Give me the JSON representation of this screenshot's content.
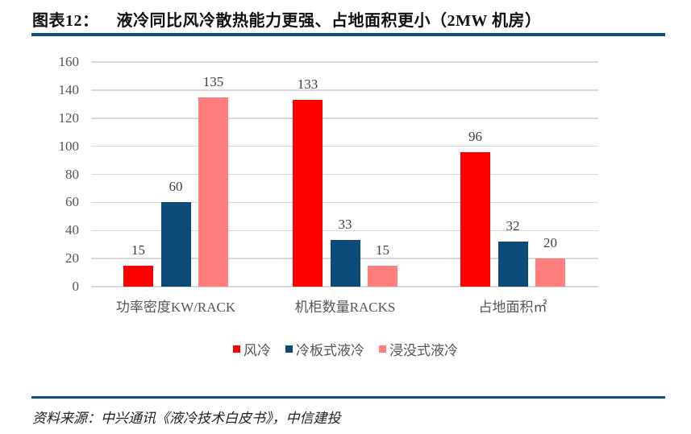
{
  "header": {
    "figure_label": "图表12：",
    "title": "液冷同比风冷散热能力更强、占地面积更小（2MW 机房）"
  },
  "footer": {
    "source": "资料来源：中兴通讯《液冷技术白皮书》，中信建投"
  },
  "colors": {
    "rule": "#0e4e80",
    "air": "#ff0000",
    "cold_plate": "#0c4a78",
    "immersion": "#ff7f7f",
    "grid": "#d9d9d9"
  },
  "axis": {
    "yticks": [
      "0",
      "20",
      "40",
      "60",
      "80",
      "100",
      "120",
      "140",
      "160"
    ]
  },
  "legend": {
    "items": [
      {
        "label": "风冷",
        "color": "#ff0000"
      },
      {
        "label": "冷板式液冷",
        "color": "#0c4a78"
      },
      {
        "label": "浸没式液冷",
        "color": "#ff7f7f"
      }
    ]
  },
  "chart_data": {
    "type": "bar",
    "title": "液冷同比风冷散热能力更强、占地面积更小（2MW 机房）",
    "categories": [
      "功率密度KW/RACK",
      "机柜数量RACKS",
      "占地面积㎡"
    ],
    "series": [
      {
        "name": "风冷",
        "color": "#ff0000",
        "values": [
          15,
          133,
          96
        ]
      },
      {
        "name": "冷板式液冷",
        "color": "#0c4a78",
        "values": [
          60,
          33,
          32
        ]
      },
      {
        "name": "浸没式液冷",
        "color": "#ff7f7f",
        "values": [
          135,
          15,
          20
        ]
      }
    ],
    "xlabel": "",
    "ylabel": "",
    "ylim": [
      0,
      160
    ],
    "yticks": [
      0,
      20,
      40,
      60,
      80,
      100,
      120,
      140,
      160
    ],
    "grid": true,
    "legend_position": "bottom",
    "data_labels": true
  }
}
